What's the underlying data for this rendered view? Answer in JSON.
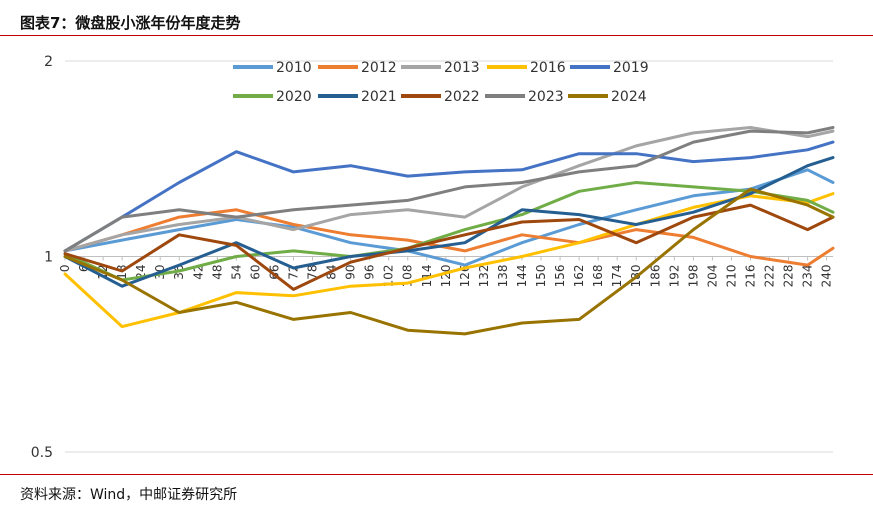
{
  "header": {
    "title": "图表7：微盘股小涨年份年度走势"
  },
  "footer": {
    "source": "资料来源：Wind，中邮证券研究所"
  },
  "chart_data": {
    "type": "line",
    "title": "图表7：微盘股小涨年份年度走势",
    "xlabel": "",
    "ylabel": "",
    "y_scale": "log",
    "ylim": [
      0.5,
      2
    ],
    "y_ticks": [
      0.5,
      1,
      2
    ],
    "xlim": [
      0,
      242
    ],
    "x_ticks": [
      0,
      6,
      12,
      18,
      24,
      30,
      36,
      42,
      48,
      54,
      60,
      66,
      72,
      78,
      84,
      90,
      96,
      102,
      108,
      114,
      120,
      126,
      132,
      138,
      144,
      150,
      156,
      162,
      168,
      174,
      180,
      186,
      192,
      198,
      204,
      210,
      216,
      222,
      228,
      234,
      240
    ],
    "x": [
      0,
      18,
      36,
      54,
      72,
      90,
      108,
      126,
      144,
      162,
      180,
      198,
      216,
      234,
      242
    ],
    "legend_position": "top-center",
    "series": [
      {
        "name": "2010",
        "color": "#5b9bd5",
        "values": [
          1.02,
          1.06,
          1.1,
          1.14,
          1.11,
          1.05,
          1.02,
          0.97,
          1.05,
          1.12,
          1.18,
          1.24,
          1.27,
          1.36,
          1.3
        ]
      },
      {
        "name": "2012",
        "color": "#ed7d31",
        "values": [
          1.02,
          1.08,
          1.15,
          1.18,
          1.12,
          1.08,
          1.06,
          1.02,
          1.08,
          1.05,
          1.1,
          1.07,
          1.0,
          0.97,
          1.03
        ]
      },
      {
        "name": "2013",
        "color": "#a5a5a5",
        "values": [
          1.02,
          1.08,
          1.12,
          1.15,
          1.1,
          1.16,
          1.18,
          1.15,
          1.28,
          1.38,
          1.48,
          1.55,
          1.58,
          1.53,
          1.56
        ]
      },
      {
        "name": "2016",
        "color": "#ffc000",
        "values": [
          0.94,
          0.78,
          0.82,
          0.88,
          0.87,
          0.9,
          0.91,
          0.96,
          1.0,
          1.05,
          1.12,
          1.19,
          1.24,
          1.21,
          1.25
        ]
      },
      {
        "name": "2019",
        "color": "#4472c4",
        "values": [
          1.02,
          1.15,
          1.3,
          1.45,
          1.35,
          1.38,
          1.33,
          1.35,
          1.36,
          1.44,
          1.44,
          1.4,
          1.42,
          1.46,
          1.5
        ]
      },
      {
        "name": "2020",
        "color": "#70ad47",
        "values": [
          1.01,
          0.92,
          0.95,
          1.0,
          1.02,
          1.0,
          1.03,
          1.1,
          1.16,
          1.26,
          1.3,
          1.28,
          1.26,
          1.22,
          1.17
        ]
      },
      {
        "name": "2021",
        "color": "#255e91",
        "values": [
          1.0,
          0.9,
          0.97,
          1.05,
          0.96,
          1.0,
          1.02,
          1.05,
          1.18,
          1.16,
          1.12,
          1.17,
          1.25,
          1.38,
          1.42
        ]
      },
      {
        "name": "2022",
        "color": "#9e480e",
        "values": [
          1.01,
          0.95,
          1.08,
          1.04,
          0.89,
          0.98,
          1.03,
          1.08,
          1.13,
          1.14,
          1.05,
          1.15,
          1.2,
          1.1,
          1.15
        ]
      },
      {
        "name": "2023",
        "color": "#7f7f7f",
        "values": [
          1.02,
          1.15,
          1.18,
          1.15,
          1.18,
          1.2,
          1.22,
          1.28,
          1.3,
          1.35,
          1.38,
          1.5,
          1.56,
          1.55,
          1.58
        ]
      },
      {
        "name": "2024",
        "color": "#997300",
        "values": [
          1.0,
          0.92,
          0.82,
          0.85,
          0.8,
          0.82,
          0.77,
          0.76,
          0.79,
          0.8,
          0.93,
          1.1,
          1.27,
          1.2,
          1.15
        ]
      }
    ]
  }
}
